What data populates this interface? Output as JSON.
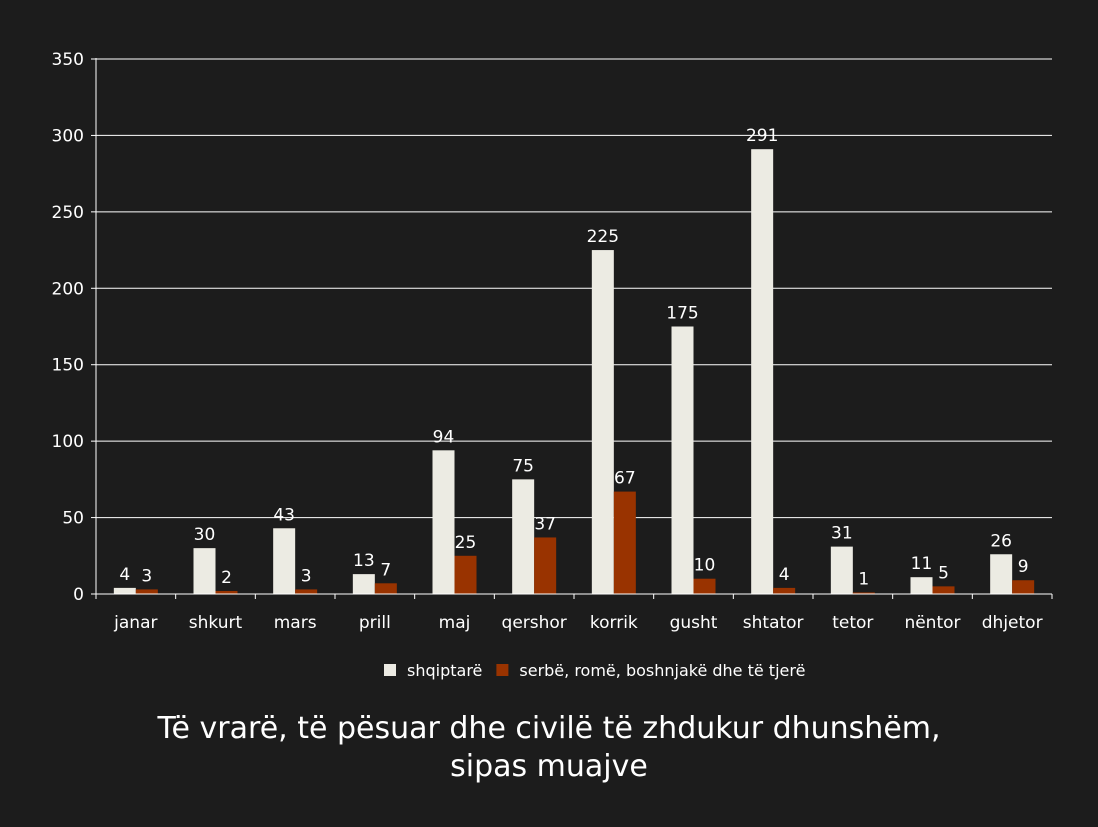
{
  "chart_data": {
    "type": "bar",
    "title_lines": [
      "Të vrarë, të pësuar dhe civilë të zhdukur dhunshëm,",
      "sipas muajve"
    ],
    "categories": [
      "janar",
      "shkurt",
      "mars",
      "prill",
      "maj",
      "qershor",
      "korrik",
      "gusht",
      "shtator",
      "tetor",
      "nëntor",
      "dhjetor"
    ],
    "series": [
      {
        "name": "shqiptarë",
        "color": "#ecebe3",
        "values": [
          4,
          30,
          43,
          13,
          94,
          75,
          225,
          175,
          291,
          31,
          11,
          26
        ]
      },
      {
        "name": "serbë, romë, boshnjakë dhe të tjerë",
        "color": "#993300",
        "values": [
          3,
          2,
          3,
          7,
          25,
          37,
          67,
          10,
          4,
          1,
          5,
          9
        ]
      }
    ],
    "ylim": [
      0,
      350
    ],
    "yticks": [
      0,
      50,
      100,
      150,
      200,
      250,
      300,
      350
    ],
    "grid": true,
    "legend_position": "bottom",
    "data_labels": true
  }
}
